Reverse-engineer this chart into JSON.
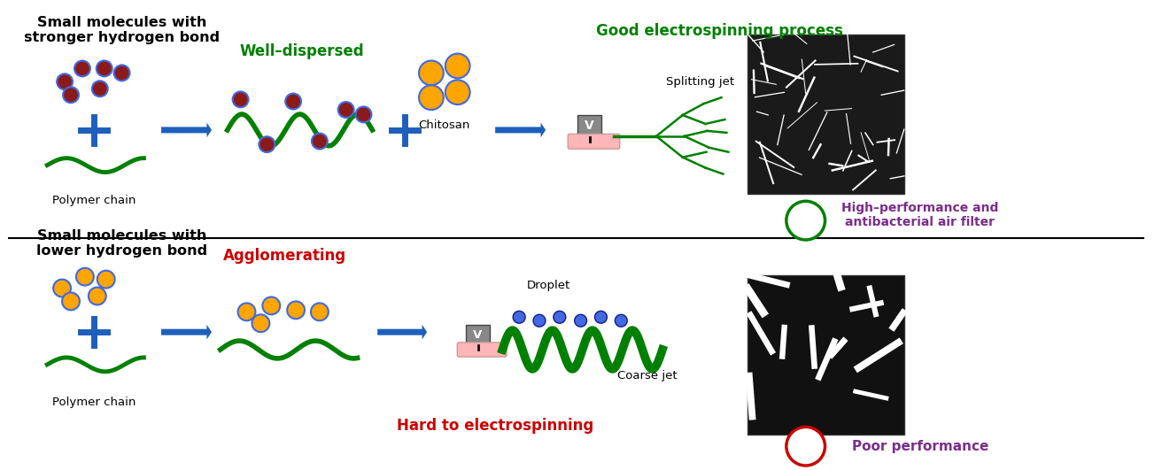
{
  "title": "",
  "bg_color": "#ffffff",
  "top_label": "Small molecules with\nstronger hydrogen bond",
  "bottom_label": "Small molecules with\nlower hydrogen bond",
  "well_dispersed": "Well–dispersed",
  "agglomerating": "Agglomerating",
  "good_process": "Good electrospinning process",
  "hard_process": "Hard to electrospinning",
  "splitting_jet": "Splitting jet",
  "droplet": "Droplet",
  "coarse_jet": "Coarse jet",
  "chitosan": "Chitosan",
  "polymer_chain": "Polymer chain",
  "high_perf": "High–performance and\nantibacterial air filter",
  "poor_perf": "Poor performance",
  "red_dot_fill": "#8B1A1A",
  "red_dot_edge": "#4169E1",
  "orange_dot_fill": "#FFA500",
  "orange_dot_edge": "#4169E1",
  "blue_dot_fill": "#4169E1",
  "blue_dot_edge": "#1a1a8B",
  "green_color": "#008000",
  "blue_color": "#1E5FBB",
  "purple_color": "#7B2D8B",
  "red_text_color": "#CC0000",
  "arrow_color": "#1E5FBB",
  "gray_box_color": "#888888",
  "pink_rod_color": "#FFB6B6",
  "pink_rod_edge": "#CC9999",
  "sem_top_bg": "#1a1a1a",
  "sem_bot_bg": "#111111"
}
